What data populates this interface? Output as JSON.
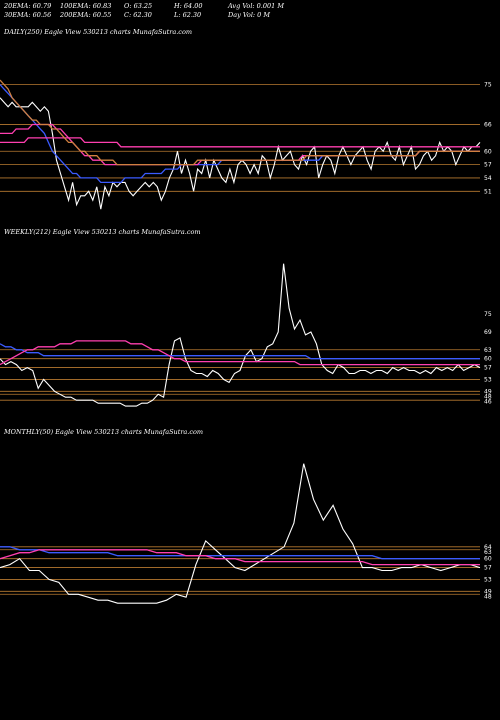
{
  "header": {
    "ema20": "20EMA: 60.79",
    "ema100": "100EMA: 60.83",
    "open": "O: 63.25",
    "high": "H: 64.00",
    "avg_vol": "Avg Vol: 0.001 M",
    "ema30": "30EMA: 60.56",
    "ema200": "200EMA: 60.55",
    "close": "C: 62.30",
    "low": "L: 62.30",
    "day_vol": "Day Vol: 0  M"
  },
  "chart_data": [
    {
      "type": "line",
      "title": "DAILY(250) Eagle  View  530213 charts MunafaSutra.com",
      "y_ticks": [
        "75",
        "66",
        "60",
        "57",
        "54",
        "51"
      ],
      "colors": {
        "price": "#ffffff",
        "ema_blue": "#3b5bff",
        "ema_pink": "#ff3fb0",
        "ema_orange": "#d08040",
        "grid": "#b87a30"
      },
      "series": [
        {
          "values": [
            72,
            71,
            70,
            71,
            70,
            70,
            70,
            70,
            71,
            70,
            69,
            70,
            69,
            64,
            58,
            55,
            52,
            49,
            53,
            48,
            50,
            50,
            51,
            49,
            52,
            47,
            52,
            50,
            53,
            52,
            53,
            53,
            51,
            50,
            51,
            52,
            53,
            52,
            53,
            52,
            49,
            51,
            54,
            56,
            60,
            55,
            58,
            55,
            51,
            56,
            55,
            58,
            54,
            58,
            56,
            54,
            53,
            56,
            53,
            57,
            58,
            57,
            55,
            57,
            55,
            59,
            58,
            54,
            57,
            61,
            58,
            59,
            60,
            57,
            56,
            59,
            57,
            60,
            61,
            54,
            57,
            59,
            58,
            55,
            59,
            61,
            59,
            57,
            59,
            60,
            61,
            58,
            56,
            60,
            61,
            60,
            62,
            59,
            58,
            61,
            57,
            59,
            61,
            56,
            57,
            59,
            60,
            58,
            59,
            62,
            60,
            61,
            60,
            57,
            59,
            61,
            60,
            61,
            61,
            62
          ]
        },
        {
          "values": [
            75,
            74,
            73,
            72,
            71,
            70,
            69,
            68,
            67,
            66,
            65,
            64,
            62,
            60,
            59,
            58,
            57,
            56,
            55,
            55,
            54,
            54,
            54,
            54,
            54,
            53,
            53,
            53,
            53,
            53,
            53,
            54,
            54,
            54,
            54,
            54,
            55,
            55,
            55,
            55,
            55,
            56,
            56,
            56,
            56,
            57,
            57,
            57,
            57,
            57,
            57,
            57,
            57,
            57,
            57,
            58,
            58,
            58,
            58,
            58,
            58,
            58,
            58,
            58,
            58,
            58,
            58,
            58,
            58,
            58,
            58,
            58,
            58,
            58,
            58,
            58,
            58,
            58,
            58,
            58,
            59,
            59,
            59,
            59,
            59,
            59,
            59,
            59,
            59,
            59,
            59,
            59,
            59,
            59,
            59,
            59,
            59,
            59,
            59,
            59,
            59,
            59,
            59,
            59,
            60,
            60,
            60,
            60,
            60,
            60,
            60,
            60,
            60,
            60,
            60,
            60,
            60,
            60,
            60,
            60
          ]
        },
        {
          "values": [
            64,
            64,
            64,
            64,
            65,
            65,
            65,
            65,
            66,
            66,
            66,
            66,
            66,
            66,
            65,
            65,
            64,
            63,
            62,
            61,
            60,
            59,
            59,
            58,
            58,
            58,
            57,
            57,
            57,
            57,
            57,
            57,
            57,
            57,
            57,
            57,
            57,
            57,
            57,
            57,
            57,
            57,
            57,
            57,
            57,
            57,
            57,
            57,
            57,
            57,
            58,
            58,
            58,
            58,
            58,
            58,
            58,
            58,
            58,
            58,
            58,
            58,
            58,
            58,
            58,
            58,
            58,
            58,
            58,
            58,
            58,
            58,
            58,
            58,
            58,
            59,
            59,
            59,
            59,
            59,
            59,
            59,
            59,
            59,
            59,
            59,
            59,
            59,
            59,
            59,
            59,
            59,
            59,
            59,
            59,
            59,
            59,
            59,
            59,
            59,
            59,
            59,
            59,
            59,
            60,
            60,
            60,
            60,
            60,
            60,
            60,
            60,
            60,
            60,
            60,
            60,
            60,
            60,
            60,
            60
          ]
        },
        {
          "values": [
            62,
            62,
            62,
            62,
            62,
            62,
            62,
            63,
            63,
            63,
            63,
            63,
            63,
            63,
            63,
            63,
            63,
            63,
            63,
            63,
            63,
            62,
            62,
            62,
            62,
            62,
            62,
            62,
            62,
            62,
            61,
            61,
            61,
            61,
            61,
            61,
            61,
            61,
            61,
            61,
            61,
            61,
            61,
            61,
            61,
            61,
            61,
            61,
            61,
            61,
            61,
            61,
            61,
            61,
            61,
            61,
            61,
            61,
            61,
            61,
            61,
            61,
            61,
            61,
            61,
            61,
            61,
            61,
            61,
            61,
            61,
            61,
            61,
            61,
            61,
            61,
            61,
            61,
            61,
            61,
            61,
            61,
            61,
            61,
            61,
            61,
            61,
            61,
            61,
            61,
            61,
            61,
            61,
            61,
            61,
            61,
            61,
            61,
            61,
            61,
            61,
            61,
            61,
            61,
            61,
            61,
            61,
            61,
            61,
            61,
            61,
            61,
            61,
            61,
            61,
            61,
            61,
            61,
            61,
            61
          ]
        },
        {
          "values": [
            76,
            75,
            74,
            72,
            71,
            70,
            69,
            68,
            67,
            67,
            66,
            66,
            66,
            65,
            65,
            64,
            63,
            62,
            62,
            61,
            60,
            60,
            59,
            59,
            59,
            58,
            58,
            58,
            58,
            57,
            57,
            57,
            57,
            57,
            57,
            57,
            57,
            57,
            57,
            57,
            57,
            57,
            57,
            57,
            57,
            57,
            57,
            57,
            57,
            58,
            58,
            58,
            58,
            58,
            58,
            58,
            58,
            58,
            58,
            58,
            58,
            58,
            58,
            58,
            58,
            58,
            58,
            58,
            58,
            58,
            58,
            58,
            58,
            58,
            58,
            58,
            59,
            59,
            59,
            59,
            59,
            59,
            59,
            59,
            59,
            59,
            59,
            59,
            59,
            59,
            59,
            59,
            59,
            59,
            59,
            59,
            59,
            59,
            59,
            59,
            59,
            59,
            59,
            59,
            60,
            60,
            60,
            60,
            60,
            60,
            60,
            60,
            60,
            60,
            60,
            60,
            60,
            60,
            60,
            60
          ]
        }
      ]
    },
    {
      "type": "line",
      "title": "WEEKLY(212) Eagle  View  530213 charts MunafaSutra.com",
      "y_ticks": [
        "75",
        "69",
        "63",
        "60",
        "57",
        "53",
        "49",
        "48",
        "46"
      ],
      "series": [
        {
          "values": [
            60,
            58,
            59,
            58,
            56,
            57,
            56,
            50,
            53,
            51,
            49,
            48,
            47,
            47,
            46,
            46,
            46,
            46,
            45,
            45,
            45,
            45,
            45,
            44,
            44,
            44,
            45,
            45,
            46,
            48,
            47,
            58,
            66,
            67,
            60,
            56,
            55,
            55,
            54,
            56,
            55,
            53,
            52,
            55,
            56,
            61,
            63,
            59,
            60,
            64,
            65,
            69,
            92,
            77,
            70,
            73,
            68,
            69,
            65,
            58,
            56,
            55,
            58,
            57,
            55,
            55,
            56,
            56,
            55,
            56,
            56,
            55,
            57,
            56,
            57,
            56,
            56,
            55,
            56,
            55,
            57,
            56,
            57,
            56,
            58,
            56,
            57,
            58,
            57
          ]
        },
        {
          "values": [
            65,
            64,
            64,
            63,
            63,
            62,
            62,
            62,
            61,
            61,
            61,
            61,
            61,
            61,
            61,
            61,
            61,
            61,
            61,
            61,
            61,
            61,
            61,
            61,
            61,
            61,
            61,
            61,
            61,
            61,
            61,
            61,
            61,
            61,
            61,
            61,
            61,
            61,
            61,
            61,
            61,
            61,
            61,
            61,
            61,
            61,
            61,
            61,
            61,
            61,
            61,
            61,
            61,
            61,
            61,
            61,
            61,
            60,
            60,
            60,
            60,
            60,
            60,
            60,
            60,
            60,
            60,
            60,
            60,
            60,
            60,
            60,
            60,
            60,
            60,
            60,
            60,
            60,
            60,
            60,
            60,
            60,
            60,
            60,
            60,
            60,
            60,
            60,
            60
          ]
        },
        {
          "values": [
            58,
            59,
            60,
            61,
            62,
            63,
            63,
            64,
            64,
            64,
            64,
            65,
            65,
            65,
            66,
            66,
            66,
            66,
            66,
            66,
            66,
            66,
            66,
            66,
            65,
            65,
            65,
            64,
            63,
            63,
            62,
            61,
            60,
            60,
            59,
            59,
            59,
            59,
            59,
            59,
            59,
            59,
            59,
            59,
            59,
            59,
            59,
            59,
            59,
            59,
            59,
            59,
            59,
            59,
            59,
            58,
            58,
            58,
            58,
            58,
            58,
            58,
            58,
            58,
            58,
            58,
            58,
            58,
            58,
            58,
            58,
            58,
            58,
            58,
            58,
            58,
            58,
            58,
            58,
            58,
            58,
            58,
            58,
            58,
            58,
            58,
            58,
            58,
            58
          ]
        }
      ]
    },
    {
      "type": "line",
      "title": "MONTHLY(50) Eagle  View  530213 charts MunafaSutra.com",
      "y_ticks": [
        "64",
        "63",
        "60",
        "57",
        "53",
        "49",
        "48"
      ],
      "series": [
        {
          "values": [
            57,
            58,
            60,
            56,
            56,
            53,
            52,
            48,
            48,
            47,
            46,
            46,
            45,
            45,
            45,
            45,
            45,
            46,
            48,
            47,
            58,
            66,
            63,
            60,
            57,
            56,
            58,
            60,
            62,
            64,
            72,
            92,
            80,
            73,
            78,
            70,
            65,
            57,
            57,
            56,
            56,
            57,
            57,
            58,
            57,
            56,
            57,
            58,
            58,
            57
          ]
        },
        {
          "values": [
            64,
            64,
            63,
            63,
            63,
            62,
            62,
            62,
            62,
            62,
            62,
            62,
            61,
            61,
            61,
            61,
            61,
            61,
            61,
            61,
            61,
            61,
            61,
            61,
            61,
            61,
            61,
            61,
            61,
            61,
            61,
            61,
            61,
            61,
            61,
            61,
            61,
            61,
            61,
            60,
            60,
            60,
            60,
            60,
            60,
            60,
            60,
            60,
            60,
            60
          ]
        },
        {
          "values": [
            60,
            61,
            62,
            62,
            63,
            63,
            63,
            63,
            63,
            63,
            63,
            63,
            63,
            63,
            63,
            63,
            62,
            62,
            62,
            61,
            61,
            61,
            60,
            60,
            60,
            59,
            59,
            59,
            59,
            59,
            59,
            59,
            59,
            59,
            59,
            59,
            59,
            59,
            58,
            58,
            58,
            58,
            58,
            58,
            58,
            58,
            58,
            58,
            58,
            58
          ]
        }
      ]
    }
  ]
}
